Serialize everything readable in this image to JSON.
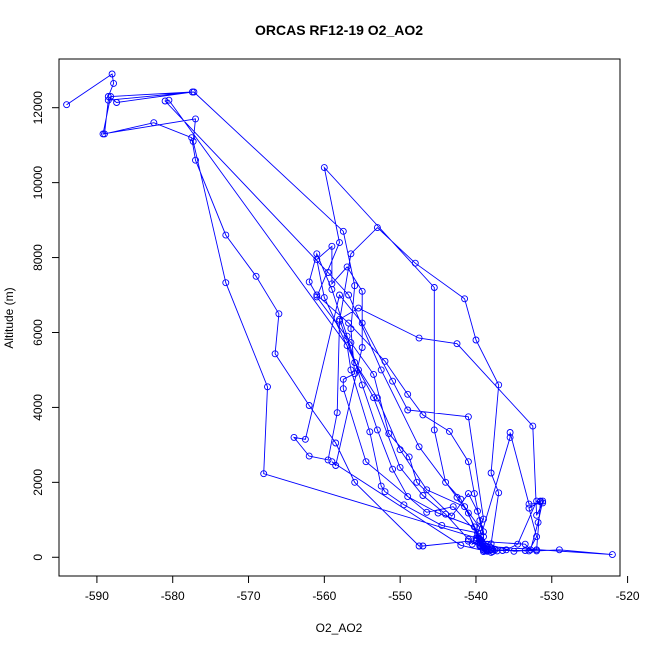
{
  "chart_data": {
    "type": "line",
    "title": "ORCAS RF12-19 O2_AO2",
    "xlabel": "O2_AO2",
    "ylabel": "Altitude (m)",
    "xlim": [
      -595,
      -521
    ],
    "ylim": [
      -500,
      13300
    ],
    "xticks": [
      -590,
      -580,
      -570,
      -560,
      -550,
      -540,
      -530,
      -520
    ],
    "xtick_labels": [
      "-590",
      "-580",
      "-570",
      "-560",
      "-550",
      "-540",
      "-530",
      "-520"
    ],
    "yticks": [
      0,
      2000,
      4000,
      6000,
      8000,
      10000,
      12000
    ],
    "ytick_labels": [
      "0",
      "2000",
      "4000",
      "6000",
      "8000",
      "10000",
      "12000"
    ],
    "grid": false,
    "series": [
      {
        "color": "#0000ff",
        "marker": "open-circle",
        "points": [
          [
            -594.0,
            12080
          ],
          [
            -588.0,
            12900
          ],
          [
            -587.8,
            12650
          ],
          [
            -588.5,
            12300
          ],
          [
            -587.4,
            12140
          ],
          [
            -577.4,
            12420
          ],
          [
            -588.2,
            12300
          ],
          [
            -589.2,
            11300
          ],
          [
            -577.0,
            11700
          ],
          [
            -577.3,
            11100
          ],
          [
            -573.0,
            7330
          ],
          [
            -567.5,
            4550
          ],
          [
            -568.0,
            2230
          ],
          [
            -539.5,
            490
          ],
          [
            -540.0,
            450
          ],
          [
            -538.8,
            290
          ],
          [
            -539.0,
            190
          ],
          [
            -538.0,
            250
          ],
          [
            -537.5,
            200
          ],
          [
            -532.0,
            170
          ],
          [
            -529.0,
            200
          ],
          [
            -522.0,
            70
          ],
          [
            -538.5,
            290
          ],
          [
            -539.2,
            380
          ],
          [
            -539.8,
            570
          ],
          [
            -540.2,
            810
          ],
          [
            -545.0,
            1180
          ],
          [
            -549.0,
            1620
          ],
          [
            -551.0,
            2350
          ],
          [
            -553.0,
            3400
          ],
          [
            -555.0,
            4600
          ],
          [
            -557.0,
            5900
          ],
          [
            -559.0,
            7150
          ],
          [
            -561.0,
            8100
          ],
          [
            -562.0,
            7350
          ],
          [
            -561.0,
            7000
          ],
          [
            -556.8,
            6250
          ],
          [
            -552.0,
            5230
          ],
          [
            -549.0,
            4350
          ],
          [
            -547.0,
            3800
          ],
          [
            -543.5,
            3360
          ],
          [
            -541.0,
            2550
          ],
          [
            -540.2,
            1700
          ],
          [
            -539.5,
            980
          ],
          [
            -539.0,
            550
          ],
          [
            -539.5,
            350
          ],
          [
            -538.0,
            190
          ],
          [
            -536.5,
            180
          ],
          [
            -533.0,
            170
          ],
          [
            -532.0,
            550
          ],
          [
            -533.0,
            1310
          ],
          [
            -531.5,
            1500
          ],
          [
            -531.2,
            1500
          ],
          [
            -531.8,
            930
          ],
          [
            -532.8,
            200
          ],
          [
            -533.5,
            350
          ],
          [
            -539.2,
            420
          ],
          [
            -542.0,
            1550
          ],
          [
            -544.0,
            2000
          ],
          [
            -545.5,
            3400
          ],
          [
            -545.5,
            7200
          ],
          [
            -560.0,
            10400
          ],
          [
            -558.0,
            8400
          ],
          [
            -561.0,
            6950
          ],
          [
            -556.5,
            5730
          ],
          [
            -553.5,
            4880
          ],
          [
            -551.5,
            3300
          ],
          [
            -548.8,
            2680
          ],
          [
            -547.8,
            2000
          ],
          [
            -543.2,
            1100
          ],
          [
            -541.0,
            1700
          ],
          [
            -539.8,
            1230
          ],
          [
            -539.0,
            680
          ],
          [
            -539.0,
            300
          ],
          [
            -539.0,
            150
          ],
          [
            -538.5,
            160
          ],
          [
            -537.2,
            170
          ],
          [
            -538.0,
            360
          ],
          [
            -537.0,
            1720
          ],
          [
            -538.0,
            2250
          ],
          [
            -537.0,
            4600
          ],
          [
            -540.0,
            5800
          ],
          [
            -541.5,
            6900
          ],
          [
            -548.0,
            7850
          ],
          [
            -553.0,
            8800
          ],
          [
            -556.5,
            8100
          ],
          [
            -558.0,
            6300
          ],
          [
            -558.3,
            3860
          ],
          [
            -559.5,
            2600
          ],
          [
            -562.0,
            2700
          ],
          [
            -564.0,
            3200
          ],
          [
            -562.5,
            3150
          ],
          [
            -558.0,
            7000
          ],
          [
            -555.0,
            6250
          ],
          [
            -551.0,
            4700
          ],
          [
            -549.0,
            3930
          ],
          [
            -541.0,
            3750
          ],
          [
            -539.0,
            1020
          ],
          [
            -540.5,
            350
          ],
          [
            -539.5,
            470
          ],
          [
            -535.5,
            3200
          ],
          [
            -535.5,
            3330
          ],
          [
            -533.0,
            1420
          ],
          [
            -531.2,
            1450
          ],
          [
            -532.0,
            1120
          ],
          [
            -532.5,
            3500
          ],
          [
            -542.5,
            5700
          ],
          [
            -547.5,
            5850
          ],
          [
            -555.5,
            6650
          ],
          [
            -558.0,
            6350
          ],
          [
            -556.0,
            5200
          ],
          [
            -553.0,
            4250
          ],
          [
            -550.0,
            2870
          ],
          [
            -546.5,
            1800
          ],
          [
            -541.5,
            1350
          ],
          [
            -539.5,
            790
          ],
          [
            -540.0,
            510
          ],
          [
            -538.5,
            210
          ],
          [
            -538.8,
            250
          ],
          [
            -539.5,
            400
          ],
          [
            -541.0,
            1180
          ],
          [
            -542.5,
            1600
          ],
          [
            -547.5,
            2950
          ],
          [
            -552.5,
            5000
          ],
          [
            -556.8,
            7000
          ],
          [
            -559.5,
            7600
          ],
          [
            -581.0,
            12180
          ],
          [
            -580.5,
            12200
          ],
          [
            -557.0,
            5650
          ],
          [
            -556.5,
            5000
          ],
          [
            -554.0,
            3350
          ],
          [
            -552.5,
            1900
          ],
          [
            -552.0,
            1750
          ],
          [
            -549.5,
            1400
          ],
          [
            -544.5,
            850
          ],
          [
            -539.8,
            650
          ],
          [
            -539.5,
            300
          ],
          [
            -539.0,
            200
          ],
          [
            -538.5,
            180
          ],
          [
            -539.5,
            320
          ],
          [
            -541.0,
            480
          ],
          [
            -544.0,
            1150
          ],
          [
            -547.0,
            1650
          ],
          [
            -550.0,
            2400
          ],
          [
            -553.5,
            4260
          ],
          [
            -555.5,
            5000
          ],
          [
            -560.0,
            6930
          ],
          [
            -561.0,
            7950
          ],
          [
            -559.0,
            8300
          ],
          [
            -559.0,
            7300
          ],
          [
            -557.0,
            7750
          ],
          [
            -555.0,
            7100
          ],
          [
            -555.0,
            5600
          ],
          [
            -558.5,
            2450
          ],
          [
            -559.0,
            2550
          ],
          [
            -542.0,
            320
          ],
          [
            -538.8,
            170
          ],
          [
            -538.0,
            130
          ],
          [
            -537.8,
            150
          ],
          [
            -536.0,
            200
          ],
          [
            -534.5,
            350
          ],
          [
            -532.0,
            1500
          ],
          [
            -531.5,
            1480
          ],
          [
            -532.0,
            200
          ],
          [
            -533.5,
            180
          ],
          [
            -535.0,
            160
          ],
          [
            -538.5,
            350
          ],
          [
            -543.0,
            1350
          ],
          [
            -546.5,
            1200
          ],
          [
            -554.5,
            2550
          ],
          [
            -557.5,
            4500
          ],
          [
            -557.5,
            4750
          ],
          [
            -556.0,
            4900
          ],
          [
            -556.5,
            6100
          ],
          [
            -556.0,
            7250
          ],
          [
            -557.5,
            8700
          ],
          [
            -577.2,
            12420
          ],
          [
            -588.5,
            12200
          ],
          [
            -589.0,
            11300
          ],
          [
            -582.5,
            11600
          ],
          [
            -577.5,
            11200
          ],
          [
            -577.0,
            10600
          ],
          [
            -573.0,
            8600
          ],
          [
            -569.0,
            7500
          ],
          [
            -566.0,
            6500
          ],
          [
            -566.5,
            5430
          ],
          [
            -562.0,
            4050
          ],
          [
            -558.5,
            3050
          ],
          [
            -556.0,
            2000
          ],
          [
            -547.5,
            300
          ],
          [
            -547.0,
            300
          ],
          [
            -541.0,
            430
          ],
          [
            -539.0,
            250
          ]
        ]
      }
    ]
  }
}
